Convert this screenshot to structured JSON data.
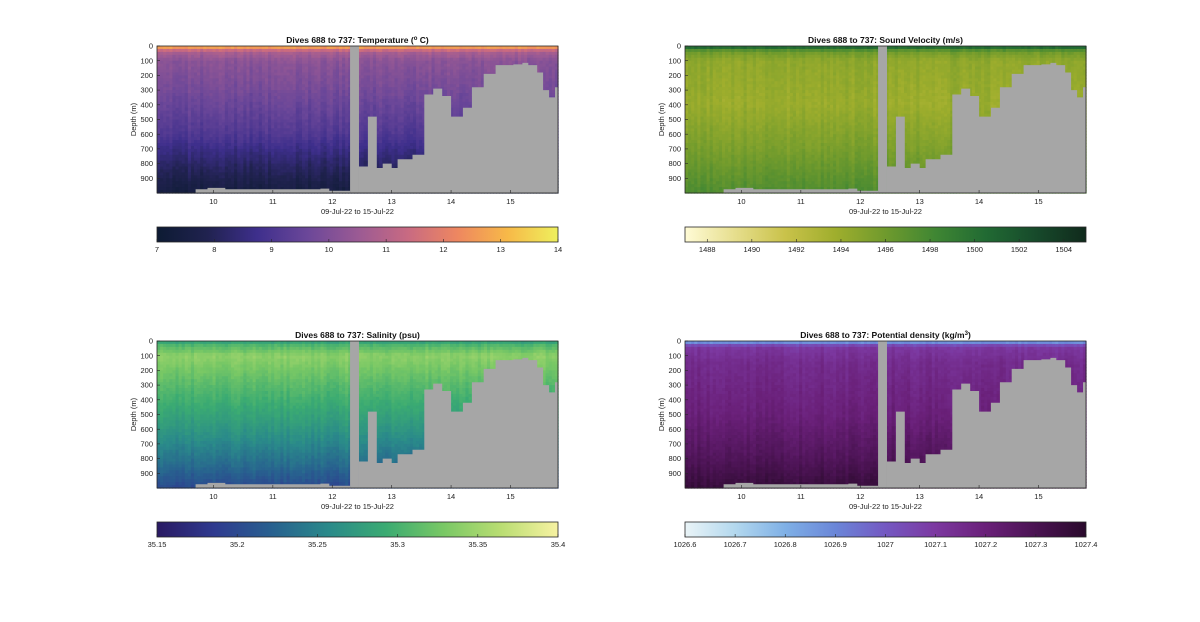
{
  "figure": {
    "colors": {
      "missing": "#a6a6a6",
      "axis": "#262626",
      "background": "#ffffff"
    },
    "time_xlabel": "09-Jul-22 to 15-Jul-22",
    "depth_ylabel": "Depth (m)",
    "x_ticks": [
      "10",
      "11",
      "12",
      "13",
      "14",
      "15"
    ],
    "y_ticks": [
      "0",
      "100",
      "200",
      "300",
      "400",
      "500",
      "600",
      "700",
      "800",
      "900"
    ]
  },
  "chart_data": [
    {
      "id": "temperature",
      "type": "heatmap",
      "title_prefix": "Dives 688 to 737: Temperature (",
      "title_sup": "o",
      "title_suffix": " C)",
      "xlabel": "09-Jul-22 to 15-Jul-22",
      "ylabel": "Depth (m)",
      "xlim": [
        9.05,
        15.8
      ],
      "ylim": [
        0,
        1000
      ],
      "y_reversed": true,
      "x_ticks": [
        10,
        11,
        12,
        13,
        14,
        15
      ],
      "y_ticks": [
        0,
        100,
        200,
        300,
        400,
        500,
        600,
        700,
        800,
        900
      ],
      "colorbar": {
        "ticks": [
          "7",
          "8",
          "9",
          "10",
          "11",
          "12",
          "13",
          "14"
        ],
        "range": [
          7,
          14
        ],
        "colors": [
          "#0d1b33",
          "#20224f",
          "#3e2f8c",
          "#6b4799",
          "#9a5a94",
          "#c86a82",
          "#ee8760",
          "#f7b948",
          "#eef05d"
        ]
      },
      "profile": [
        [
          0,
          13.4
        ],
        [
          15,
          12.2
        ],
        [
          40,
          10.8
        ],
        [
          100,
          10.2
        ],
        [
          300,
          9.8
        ],
        [
          600,
          9.1
        ],
        [
          800,
          8.2
        ],
        [
          1000,
          7.4
        ]
      ]
    },
    {
      "id": "sound_velocity",
      "type": "heatmap",
      "title_prefix": "Dives 688 to 737: Sound Velocity (m/s)",
      "title_sup": "",
      "title_suffix": "",
      "xlabel": "09-Jul-22 to 15-Jul-22",
      "ylabel": "Depth (m)",
      "xlim": [
        9.05,
        15.8
      ],
      "ylim": [
        0,
        1000
      ],
      "y_reversed": true,
      "x_ticks": [
        10,
        11,
        12,
        13,
        14,
        15
      ],
      "y_ticks": [
        0,
        100,
        200,
        300,
        400,
        500,
        600,
        700,
        800,
        900
      ],
      "colorbar": {
        "ticks": [
          "1488",
          "1490",
          "1492",
          "1494",
          "1496",
          "1498",
          "1500",
          "1502",
          "1504"
        ],
        "range": [
          1487,
          1505
        ],
        "colors": [
          "#fffbd6",
          "#e6de8d",
          "#c9c24a",
          "#9fae2d",
          "#6f9a2d",
          "#3f8633",
          "#216a33",
          "#174a2b",
          "#102a1c"
        ]
      },
      "profile": [
        [
          0,
          1503
        ],
        [
          15,
          1499
        ],
        [
          40,
          1496
        ],
        [
          100,
          1494.5
        ],
        [
          400,
          1494
        ],
        [
          700,
          1495.5
        ],
        [
          1000,
          1497.5
        ]
      ]
    },
    {
      "id": "salinity",
      "type": "heatmap",
      "title_prefix": "Dives 688 to 737: Salinity (psu)",
      "title_sup": "",
      "title_suffix": "",
      "xlabel": "09-Jul-22 to 15-Jul-22",
      "ylabel": "Depth (m)",
      "xlim": [
        9.05,
        15.8
      ],
      "ylim": [
        0,
        1000
      ],
      "y_reversed": true,
      "x_ticks": [
        10,
        11,
        12,
        13,
        14,
        15
      ],
      "y_ticks": [
        0,
        100,
        200,
        300,
        400,
        500,
        600,
        700,
        800,
        900
      ],
      "colorbar": {
        "ticks": [
          "35.15",
          "35.2",
          "35.25",
          "35.3",
          "35.35",
          "35.4"
        ],
        "range": [
          35.15,
          35.4
        ],
        "colors": [
          "#2a1a63",
          "#2f3a8f",
          "#28608f",
          "#2a8a8a",
          "#3bab72",
          "#79c865",
          "#b9dd72",
          "#f7f2a2"
        ]
      },
      "profile": [
        [
          0,
          35.27
        ],
        [
          20,
          35.3
        ],
        [
          100,
          35.34
        ],
        [
          300,
          35.31
        ],
        [
          600,
          35.27
        ],
        [
          850,
          35.23
        ],
        [
          1000,
          35.2
        ]
      ]
    },
    {
      "id": "potential_density",
      "type": "heatmap",
      "title_prefix": "Dives 688 to 737: Potential density (kg/m",
      "title_sup": "3",
      "title_suffix": ")",
      "xlabel": "09-Jul-22 to 15-Jul-22",
      "ylabel": "Depth (m)",
      "xlim": [
        9.05,
        15.8
      ],
      "ylim": [
        0,
        1000
      ],
      "y_reversed": true,
      "x_ticks": [
        10,
        11,
        12,
        13,
        14,
        15
      ],
      "y_ticks": [
        0,
        100,
        200,
        300,
        400,
        500,
        600,
        700,
        800,
        900
      ],
      "colorbar": {
        "ticks": [
          "1026.6",
          "1026.7",
          "1026.8",
          "1026.9",
          "1027",
          "1027.1",
          "1027.2",
          "1027.3",
          "1027.4"
        ],
        "range": [
          1026.6,
          1027.4
        ],
        "colors": [
          "#eaf4f7",
          "#b3d8ee",
          "#7fb0e6",
          "#6a86d8",
          "#7458c2",
          "#7c38a0",
          "#6a2079",
          "#4a1352",
          "#2a0a2c"
        ]
      },
      "profile": [
        [
          0,
          1026.75
        ],
        [
          15,
          1026.95
        ],
        [
          40,
          1027.1
        ],
        [
          150,
          1027.15
        ],
        [
          500,
          1027.2
        ],
        [
          800,
          1027.28
        ],
        [
          1000,
          1027.36
        ]
      ]
    }
  ],
  "coverage": {
    "gap": {
      "x0": 12.3,
      "x1": 12.45
    },
    "floor": [
      [
        9.05,
        1000
      ],
      [
        9.7,
        975
      ],
      [
        9.9,
        965
      ],
      [
        10.2,
        975
      ],
      [
        11.8,
        970
      ],
      [
        11.95,
        985
      ],
      [
        12.3,
        1000
      ],
      [
        12.45,
        820
      ],
      [
        12.6,
        480
      ],
      [
        12.75,
        830
      ],
      [
        12.85,
        800
      ],
      [
        13.0,
        830
      ],
      [
        13.1,
        770
      ],
      [
        13.35,
        740
      ],
      [
        13.55,
        330
      ],
      [
        13.7,
        290
      ],
      [
        13.85,
        340
      ],
      [
        14.0,
        480
      ],
      [
        14.2,
        420
      ],
      [
        14.35,
        280
      ],
      [
        14.55,
        190
      ],
      [
        14.75,
        130
      ],
      [
        15.05,
        125
      ],
      [
        15.2,
        115
      ],
      [
        15.3,
        130
      ],
      [
        15.45,
        180
      ],
      [
        15.55,
        300
      ],
      [
        15.65,
        350
      ],
      [
        15.75,
        280
      ],
      [
        15.8,
        280
      ]
    ]
  }
}
